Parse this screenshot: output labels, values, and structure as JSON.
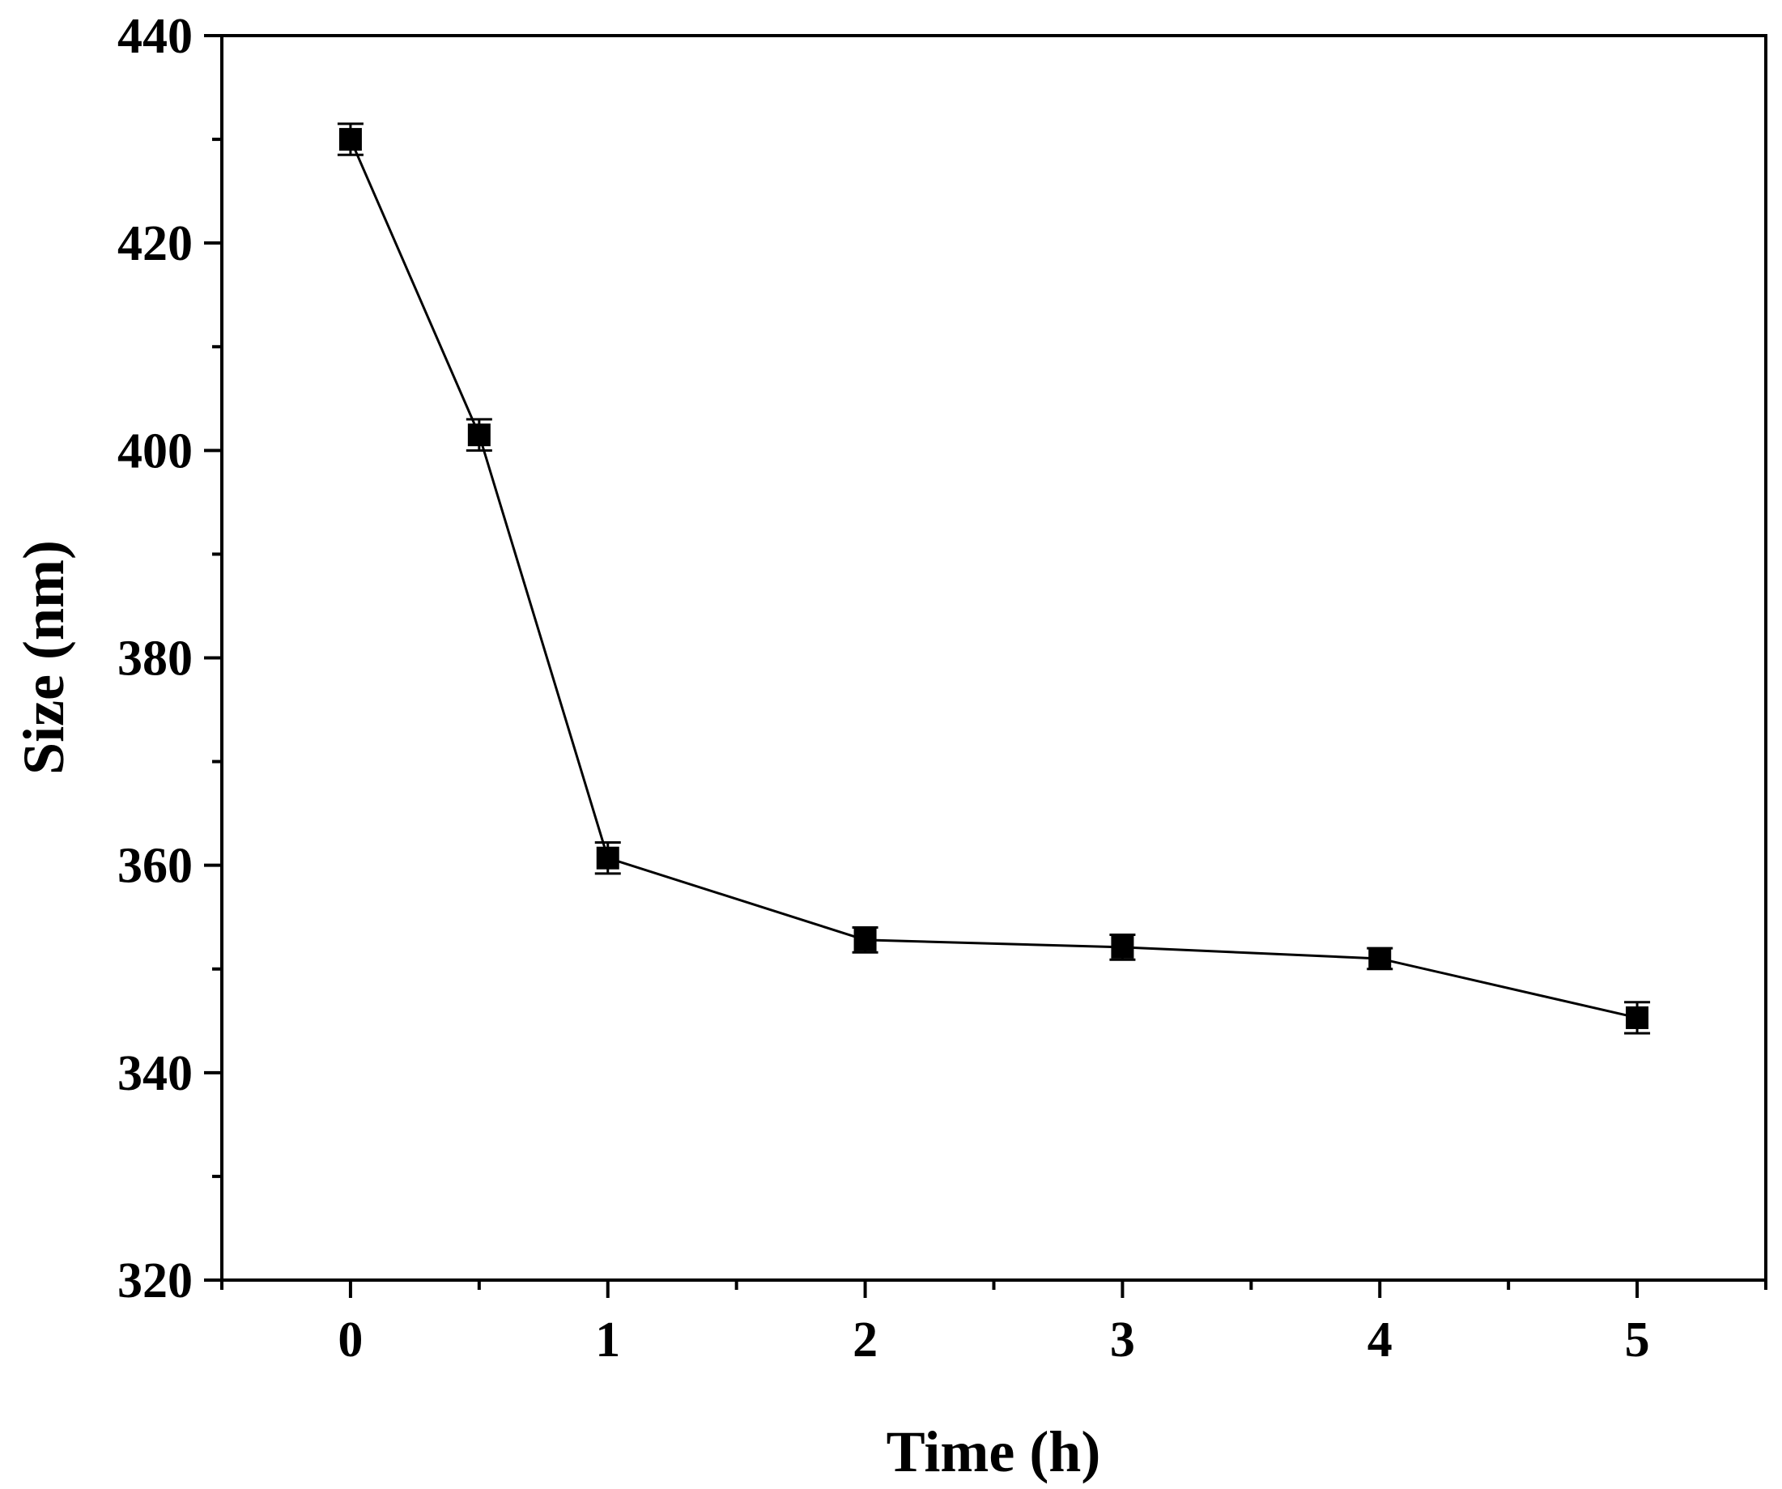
{
  "chart_data": {
    "type": "line",
    "xlabel": "Time (h)",
    "ylabel": "Size (nm)",
    "xlim": [
      -0.5,
      5.5
    ],
    "ylim": [
      320,
      440
    ],
    "x_ticks": [
      0,
      1,
      2,
      3,
      4,
      5
    ],
    "y_ticks": [
      320,
      340,
      360,
      380,
      400,
      420,
      440
    ],
    "grid": false,
    "legend": "none",
    "marker": "square",
    "colors": {
      "line": "#000000",
      "marker": "#000000",
      "frame": "#000000"
    },
    "series": [
      {
        "x": [
          0,
          0.5,
          1,
          2,
          3,
          4,
          5
        ],
        "y": [
          430,
          401.5,
          360.7,
          352.8,
          352.1,
          351.0,
          345.3
        ],
        "error": [
          1.5,
          1.5,
          1.5,
          1.2,
          1.2,
          1.0,
          1.5
        ]
      }
    ]
  }
}
